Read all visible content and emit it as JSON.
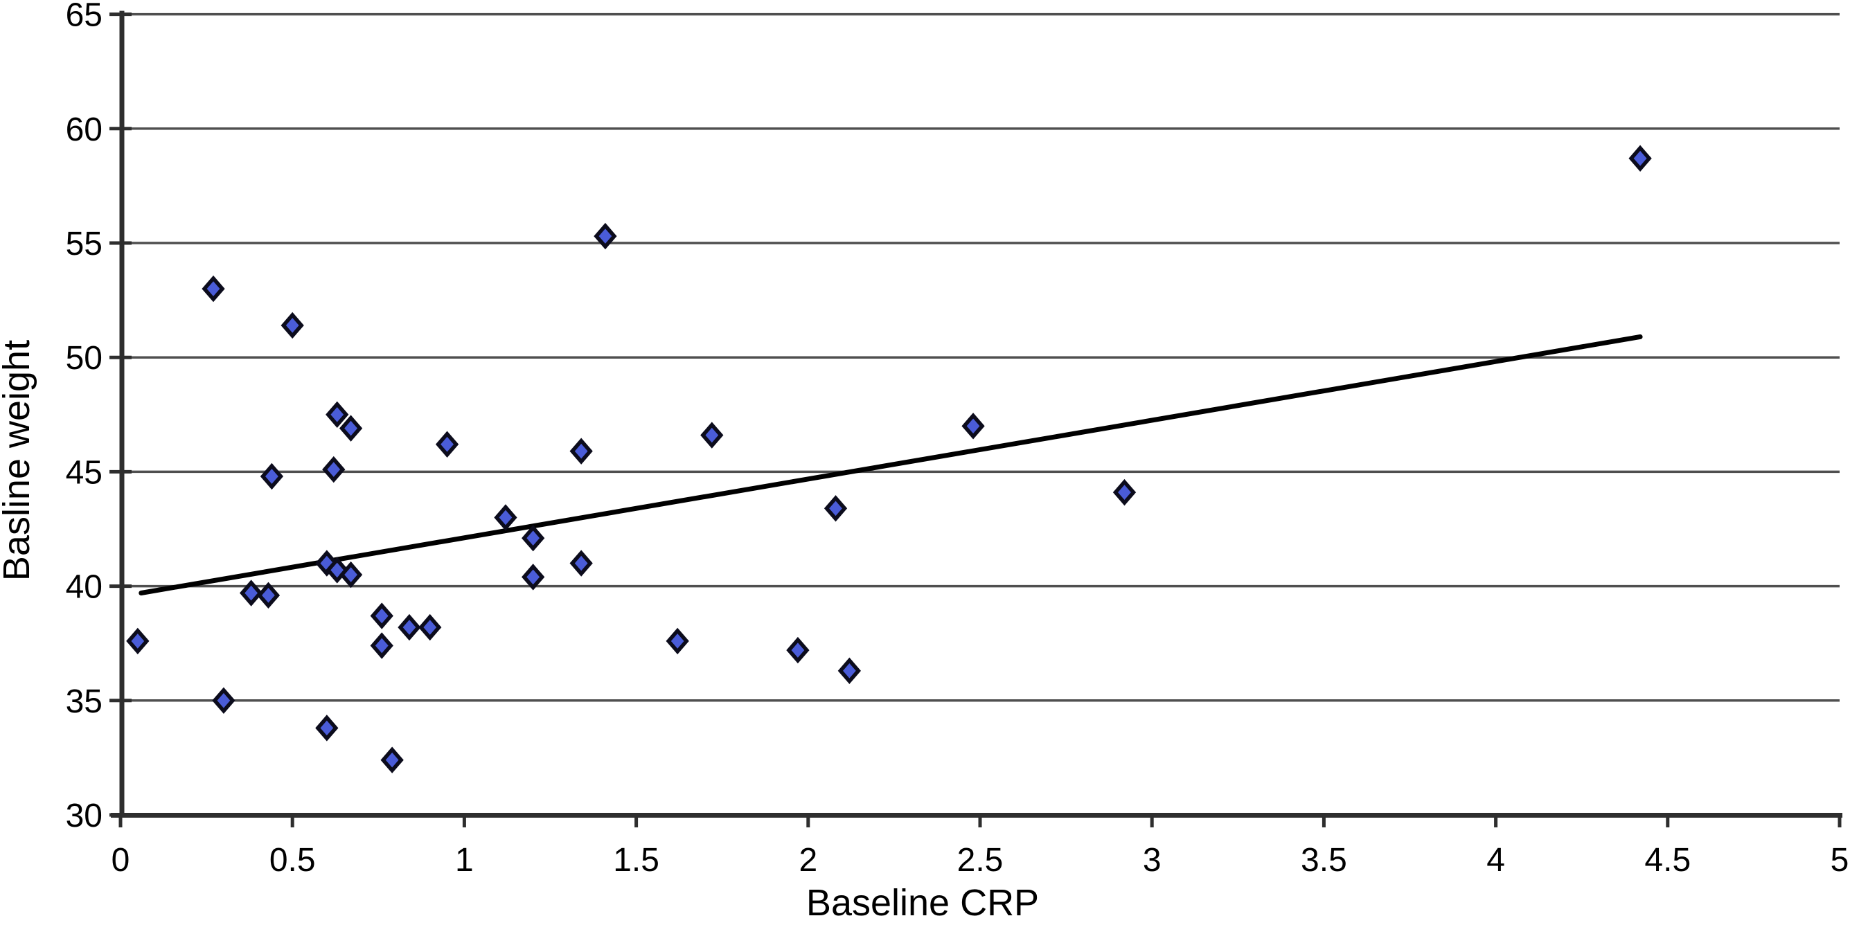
{
  "chart_data": {
    "type": "scatter",
    "title": "",
    "xlabel": "Baseline CRP",
    "ylabel": "Basline weight",
    "xlim": [
      0,
      5
    ],
    "ylim": [
      30,
      65
    ],
    "grid": "horizontal-only",
    "legend": "none",
    "x_tick_labels": [
      "0",
      "0.5",
      "1",
      "1.5",
      "2",
      "2.5",
      "3",
      "3.5",
      "4",
      "4.5",
      "5"
    ],
    "x_tick_values": [
      0,
      0.5,
      1,
      1.5,
      2,
      2.5,
      3,
      3.5,
      4,
      4.5,
      5
    ],
    "y_tick_labels": [
      "30",
      "35",
      "40",
      "45",
      "50",
      "55",
      "60",
      "65"
    ],
    "y_tick_values": [
      30,
      35,
      40,
      45,
      50,
      55,
      60,
      65
    ],
    "series": [
      {
        "name": "baseline-weight-vs-crp",
        "marker": "diamond",
        "points": [
          [
            0.05,
            37.6
          ],
          [
            0.27,
            53.0
          ],
          [
            0.3,
            35.0
          ],
          [
            0.38,
            39.7
          ],
          [
            0.43,
            39.6
          ],
          [
            0.44,
            44.8
          ],
          [
            0.5,
            51.4
          ],
          [
            0.6,
            41.0
          ],
          [
            0.6,
            33.8
          ],
          [
            0.62,
            45.1
          ],
          [
            0.63,
            47.5
          ],
          [
            0.63,
            40.7
          ],
          [
            0.67,
            46.9
          ],
          [
            0.67,
            40.5
          ],
          [
            0.76,
            38.7
          ],
          [
            0.76,
            37.4
          ],
          [
            0.79,
            32.4
          ],
          [
            0.84,
            38.2
          ],
          [
            0.9,
            38.2
          ],
          [
            0.95,
            46.2
          ],
          [
            1.12,
            43.0
          ],
          [
            1.2,
            42.1
          ],
          [
            1.2,
            40.4
          ],
          [
            1.34,
            45.9
          ],
          [
            1.34,
            41.0
          ],
          [
            1.41,
            55.3
          ],
          [
            1.62,
            37.6
          ],
          [
            1.72,
            46.6
          ],
          [
            1.97,
            37.2
          ],
          [
            2.08,
            43.4
          ],
          [
            2.12,
            36.3
          ],
          [
            2.48,
            47.0
          ],
          [
            2.92,
            44.1
          ],
          [
            4.42,
            58.7
          ]
        ]
      }
    ],
    "trend_line": {
      "x_start": 0.06,
      "y_start": 39.7,
      "x_end": 4.42,
      "y_end": 50.9
    }
  },
  "colors": {
    "marker_fill": "#4a5cd8",
    "marker_stroke": "#0c0c1c",
    "gridline": "#4f4f4f",
    "axis": "#2e2e2e",
    "trend_line": "#000000",
    "background": "#ffffff",
    "text": "#000000"
  }
}
